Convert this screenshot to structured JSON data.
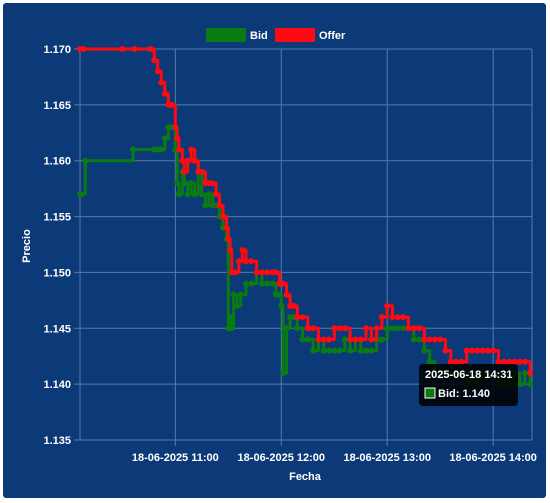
{
  "chart_data": {
    "type": "line",
    "xlabel": "Fecha",
    "ylabel": "Precio",
    "ylim": [
      1.135,
      1.17
    ],
    "y_ticks": [
      "1.135",
      "1.140",
      "1.145",
      "1.150",
      "1.155",
      "1.160",
      "1.165",
      "1.170"
    ],
    "x_range": [
      "2025-06-18 10:06",
      "2025-06-18 14:22"
    ],
    "x_ticks": [
      {
        "label": "18-06-2025 11:00",
        "time": "2025-06-18 11:00"
      },
      {
        "label": "18-06-2025 12:00",
        "time": "2025-06-18 12:00"
      },
      {
        "label": "18-06-2025 13:00",
        "time": "2025-06-18 13:00"
      },
      {
        "label": "18-06-2025 14:00",
        "time": "2025-06-18 14:00"
      }
    ],
    "grid": true,
    "legend_position": "top-center",
    "series": [
      {
        "name": "Bid",
        "color": "#0a7a12",
        "points": [
          [
            "2025-06-18 10:06",
            1.157
          ],
          [
            "2025-06-18 10:07",
            1.157
          ],
          [
            "2025-06-18 10:09",
            1.16
          ],
          [
            "2025-06-18 10:36",
            1.161
          ],
          [
            "2025-06-18 10:48",
            1.161
          ],
          [
            "2025-06-18 10:50",
            1.161
          ],
          [
            "2025-06-18 10:52",
            1.161
          ],
          [
            "2025-06-18 10:54",
            1.162
          ],
          [
            "2025-06-18 10:56",
            1.163
          ],
          [
            "2025-06-18 10:58",
            1.163
          ],
          [
            "2025-06-18 11:00",
            1.161
          ],
          [
            "2025-06-18 11:01",
            1.158
          ],
          [
            "2025-06-18 11:02",
            1.157
          ],
          [
            "2025-06-18 11:04",
            1.159
          ],
          [
            "2025-06-18 11:05",
            1.158
          ],
          [
            "2025-06-18 11:07",
            1.157
          ],
          [
            "2025-06-18 11:09",
            1.158
          ],
          [
            "2025-06-18 11:11",
            1.157
          ],
          [
            "2025-06-18 11:13",
            1.159
          ],
          [
            "2025-06-18 11:15",
            1.157
          ],
          [
            "2025-06-18 11:17",
            1.156
          ],
          [
            "2025-06-18 11:19",
            1.157
          ],
          [
            "2025-06-18 11:21",
            1.156
          ],
          [
            "2025-06-18 11:23",
            1.156
          ],
          [
            "2025-06-18 11:25",
            1.155
          ],
          [
            "2025-06-18 11:27",
            1.154
          ],
          [
            "2025-06-18 11:29",
            1.153
          ],
          [
            "2025-06-18 11:30",
            1.145
          ],
          [
            "2025-06-18 11:31",
            1.146
          ],
          [
            "2025-06-18 11:32",
            1.145
          ],
          [
            "2025-06-18 11:33",
            1.148
          ],
          [
            "2025-06-18 11:35",
            1.147
          ],
          [
            "2025-06-18 11:37",
            1.148
          ],
          [
            "2025-06-18 11:40",
            1.149
          ],
          [
            "2025-06-18 11:43",
            1.149
          ],
          [
            "2025-06-18 11:46",
            1.15
          ],
          [
            "2025-06-18 11:49",
            1.149
          ],
          [
            "2025-06-18 11:52",
            1.149
          ],
          [
            "2025-06-18 11:55",
            1.149
          ],
          [
            "2025-06-18 11:57",
            1.148
          ],
          [
            "2025-06-18 11:59",
            1.148
          ],
          [
            "2025-06-18 12:00",
            1.147
          ],
          [
            "2025-06-18 12:01",
            1.141
          ],
          [
            "2025-06-18 12:03",
            1.145
          ],
          [
            "2025-06-18 12:05",
            1.146
          ],
          [
            "2025-06-18 12:07",
            1.146
          ],
          [
            "2025-06-18 12:09",
            1.145
          ],
          [
            "2025-06-18 12:12",
            1.144
          ],
          [
            "2025-06-18 12:15",
            1.144
          ],
          [
            "2025-06-18 12:18",
            1.143
          ],
          [
            "2025-06-18 12:21",
            1.144
          ],
          [
            "2025-06-18 12:24",
            1.143
          ],
          [
            "2025-06-18 12:27",
            1.143
          ],
          [
            "2025-06-18 12:30",
            1.143
          ],
          [
            "2025-06-18 12:33",
            1.143
          ],
          [
            "2025-06-18 12:36",
            1.144
          ],
          [
            "2025-06-18 12:39",
            1.143
          ],
          [
            "2025-06-18 12:42",
            1.144
          ],
          [
            "2025-06-18 12:45",
            1.143
          ],
          [
            "2025-06-18 12:48",
            1.143
          ],
          [
            "2025-06-18 12:51",
            1.143
          ],
          [
            "2025-06-18 12:54",
            1.144
          ],
          [
            "2025-06-18 12:57",
            1.144
          ],
          [
            "2025-06-18 13:00",
            1.145
          ],
          [
            "2025-06-18 13:03",
            1.145
          ],
          [
            "2025-06-18 13:06",
            1.145
          ],
          [
            "2025-06-18 13:09",
            1.145
          ],
          [
            "2025-06-18 13:12",
            1.145
          ],
          [
            "2025-06-18 13:15",
            1.144
          ],
          [
            "2025-06-18 13:18",
            1.144
          ],
          [
            "2025-06-18 13:21",
            1.143
          ],
          [
            "2025-06-18 13:24",
            1.142
          ],
          [
            "2025-06-18 13:27",
            1.141
          ],
          [
            "2025-06-18 13:30",
            1.141
          ],
          [
            "2025-06-18 13:33",
            1.141
          ],
          [
            "2025-06-18 13:36",
            1.141
          ],
          [
            "2025-06-18 13:39",
            1.141
          ],
          [
            "2025-06-18 13:42",
            1.141
          ],
          [
            "2025-06-18 13:45",
            1.14
          ],
          [
            "2025-06-18 13:48",
            1.141
          ],
          [
            "2025-06-18 13:51",
            1.14
          ],
          [
            "2025-06-18 13:54",
            1.141
          ],
          [
            "2025-06-18 13:57",
            1.141
          ],
          [
            "2025-06-18 14:00",
            1.141
          ],
          [
            "2025-06-18 14:03",
            1.14
          ],
          [
            "2025-06-18 14:06",
            1.141
          ],
          [
            "2025-06-18 14:09",
            1.14
          ],
          [
            "2025-06-18 14:12",
            1.141
          ],
          [
            "2025-06-18 14:15",
            1.14
          ],
          [
            "2025-06-18 14:18",
            1.141
          ],
          [
            "2025-06-18 14:21",
            1.14
          ]
        ]
      },
      {
        "name": "Offer",
        "color": "#ff0a12",
        "points": [
          [
            "2025-06-18 10:06",
            1.17
          ],
          [
            "2025-06-18 10:08",
            1.17
          ],
          [
            "2025-06-18 10:30",
            1.17
          ],
          [
            "2025-06-18 10:37",
            1.17
          ],
          [
            "2025-06-18 10:46",
            1.17
          ],
          [
            "2025-06-18 10:48",
            1.169
          ],
          [
            "2025-06-18 10:50",
            1.168
          ],
          [
            "2025-06-18 10:52",
            1.167
          ],
          [
            "2025-06-18 10:54",
            1.166
          ],
          [
            "2025-06-18 10:56",
            1.165
          ],
          [
            "2025-06-18 10:58",
            1.165
          ],
          [
            "2025-06-18 11:00",
            1.163
          ],
          [
            "2025-06-18 11:01",
            1.162
          ],
          [
            "2025-06-18 11:02",
            1.161
          ],
          [
            "2025-06-18 11:04",
            1.16
          ],
          [
            "2025-06-18 11:05",
            1.159
          ],
          [
            "2025-06-18 11:07",
            1.16
          ],
          [
            "2025-06-18 11:09",
            1.161
          ],
          [
            "2025-06-18 11:11",
            1.16
          ],
          [
            "2025-06-18 11:13",
            1.159
          ],
          [
            "2025-06-18 11:15",
            1.159
          ],
          [
            "2025-06-18 11:17",
            1.158
          ],
          [
            "2025-06-18 11:19",
            1.158
          ],
          [
            "2025-06-18 11:21",
            1.158
          ],
          [
            "2025-06-18 11:23",
            1.157
          ],
          [
            "2025-06-18 11:25",
            1.156
          ],
          [
            "2025-06-18 11:27",
            1.155
          ],
          [
            "2025-06-18 11:29",
            1.154
          ],
          [
            "2025-06-18 11:30",
            1.153
          ],
          [
            "2025-06-18 11:31",
            1.152
          ],
          [
            "2025-06-18 11:32",
            1.15
          ],
          [
            "2025-06-18 11:34",
            1.15
          ],
          [
            "2025-06-18 11:36",
            1.151
          ],
          [
            "2025-06-18 11:38",
            1.152
          ],
          [
            "2025-06-18 11:40",
            1.151
          ],
          [
            "2025-06-18 11:43",
            1.151
          ],
          [
            "2025-06-18 11:46",
            1.15
          ],
          [
            "2025-06-18 11:49",
            1.15
          ],
          [
            "2025-06-18 11:52",
            1.15
          ],
          [
            "2025-06-18 11:55",
            1.15
          ],
          [
            "2025-06-18 11:57",
            1.15
          ],
          [
            "2025-06-18 11:59",
            1.149
          ],
          [
            "2025-06-18 12:01",
            1.149
          ],
          [
            "2025-06-18 12:03",
            1.148
          ],
          [
            "2025-06-18 12:05",
            1.147
          ],
          [
            "2025-06-18 12:07",
            1.147
          ],
          [
            "2025-06-18 12:09",
            1.146
          ],
          [
            "2025-06-18 12:12",
            1.146
          ],
          [
            "2025-06-18 12:15",
            1.145
          ],
          [
            "2025-06-18 12:18",
            1.145
          ],
          [
            "2025-06-18 12:21",
            1.144
          ],
          [
            "2025-06-18 12:24",
            1.144
          ],
          [
            "2025-06-18 12:27",
            1.144
          ],
          [
            "2025-06-18 12:30",
            1.145
          ],
          [
            "2025-06-18 12:33",
            1.145
          ],
          [
            "2025-06-18 12:36",
            1.145
          ],
          [
            "2025-06-18 12:39",
            1.144
          ],
          [
            "2025-06-18 12:42",
            1.144
          ],
          [
            "2025-06-18 12:45",
            1.144
          ],
          [
            "2025-06-18 12:48",
            1.145
          ],
          [
            "2025-06-18 12:51",
            1.144
          ],
          [
            "2025-06-18 12:54",
            1.145
          ],
          [
            "2025-06-18 12:57",
            1.146
          ],
          [
            "2025-06-18 13:00",
            1.147
          ],
          [
            "2025-06-18 13:03",
            1.146
          ],
          [
            "2025-06-18 13:06",
            1.146
          ],
          [
            "2025-06-18 13:09",
            1.146
          ],
          [
            "2025-06-18 13:12",
            1.145
          ],
          [
            "2025-06-18 13:15",
            1.145
          ],
          [
            "2025-06-18 13:18",
            1.145
          ],
          [
            "2025-06-18 13:21",
            1.144
          ],
          [
            "2025-06-18 13:24",
            1.144
          ],
          [
            "2025-06-18 13:27",
            1.144
          ],
          [
            "2025-06-18 13:30",
            1.144
          ],
          [
            "2025-06-18 13:33",
            1.143
          ],
          [
            "2025-06-18 13:36",
            1.142
          ],
          [
            "2025-06-18 13:39",
            1.142
          ],
          [
            "2025-06-18 13:42",
            1.142
          ],
          [
            "2025-06-18 13:45",
            1.143
          ],
          [
            "2025-06-18 13:48",
            1.143
          ],
          [
            "2025-06-18 13:51",
            1.143
          ],
          [
            "2025-06-18 13:54",
            1.143
          ],
          [
            "2025-06-18 13:57",
            1.143
          ],
          [
            "2025-06-18 14:00",
            1.143
          ],
          [
            "2025-06-18 14:03",
            1.142
          ],
          [
            "2025-06-18 14:06",
            1.142
          ],
          [
            "2025-06-18 14:09",
            1.142
          ],
          [
            "2025-06-18 14:12",
            1.142
          ],
          [
            "2025-06-18 14:15",
            1.142
          ],
          [
            "2025-06-18 14:18",
            1.142
          ],
          [
            "2025-06-18 14:21",
            1.141
          ]
        ]
      }
    ],
    "tooltip": {
      "title": "2025-06-18 14:31",
      "series": "Bid",
      "label": "Bid: 1.140"
    }
  },
  "colors": {
    "background": "#0c3a78",
    "grid": "#5a7aa8",
    "text": "#ffffff"
  }
}
